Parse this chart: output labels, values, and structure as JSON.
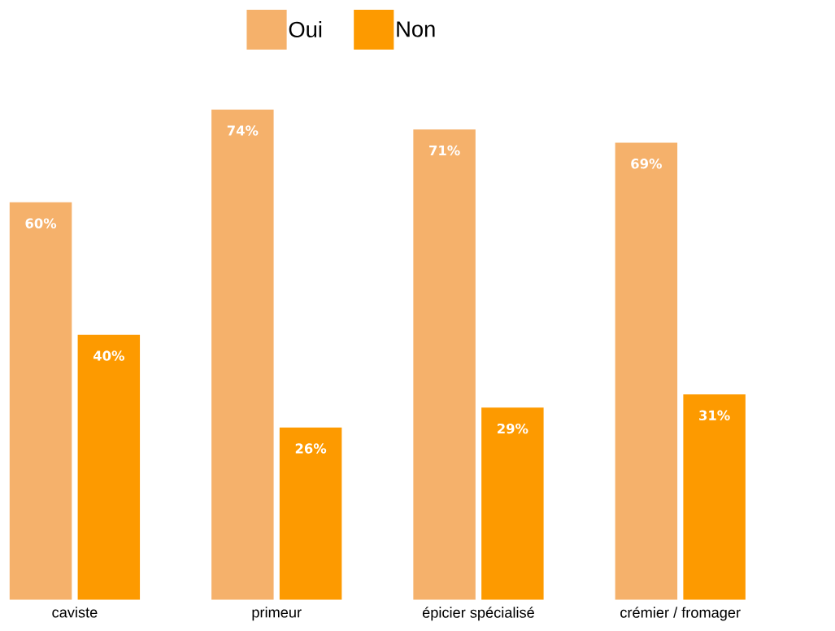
{
  "chart_data": {
    "type": "bar",
    "categories": [
      "caviste",
      "primeur",
      "épicier spécialisé",
      "crémier / fromager"
    ],
    "series": [
      {
        "name": "Oui",
        "color": "#f5b16b",
        "values": [
          60,
          74,
          71,
          69
        ],
        "value_labels": [
          "60%",
          "74%",
          "71%",
          "69%"
        ]
      },
      {
        "name": "Non",
        "color": "#fd9a00",
        "values": [
          40,
          26,
          29,
          31
        ],
        "value_labels": [
          "40%",
          "26%",
          "29%",
          "31%"
        ]
      }
    ],
    "legend": "top"
  }
}
